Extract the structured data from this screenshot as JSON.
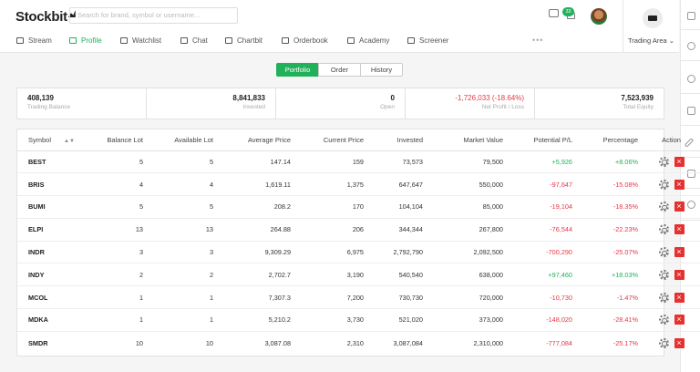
{
  "header": {
    "logo": "Stockbit",
    "search_placeholder": "Search for brand, symbol or username...",
    "notification_count": "33",
    "trading_area_label": "Trading Area",
    "nav": [
      {
        "label": "Stream",
        "icon": "home-icon"
      },
      {
        "label": "Profile",
        "icon": "user-icon",
        "active": true
      },
      {
        "label": "Watchlist",
        "icon": "star-icon"
      },
      {
        "label": "Chat",
        "icon": "chat-icon"
      },
      {
        "label": "Chartbit",
        "icon": "chart-icon"
      },
      {
        "label": "Orderbook",
        "icon": "book-icon"
      },
      {
        "label": "Academy",
        "icon": "academy-icon"
      },
      {
        "label": "Screener",
        "icon": "filter-icon"
      }
    ],
    "more": "•••"
  },
  "tabs": [
    {
      "label": "Portfolio",
      "active": true
    },
    {
      "label": "Order"
    },
    {
      "label": "History"
    }
  ],
  "summary": [
    {
      "value": "408,139",
      "label": "Trading Balance"
    },
    {
      "value": "8,841,833",
      "label": "Invested"
    },
    {
      "value": "0",
      "label": "Open"
    },
    {
      "value": "-1,726,033 (-18.64%)",
      "label": "Net Profit / Loss"
    },
    {
      "value": "7,523,939",
      "label": "Total Equity"
    }
  ],
  "table": {
    "headers": [
      "Symbol",
      "Balance Lot",
      "Available Lot",
      "Average Price",
      "Current Price",
      "Invested",
      "Market Value",
      "Potential P/L",
      "Percentage",
      "Action"
    ],
    "rows": [
      [
        "BEST",
        "5",
        "5",
        "147.14",
        "159",
        "73,573",
        "79,500",
        "+5,926",
        "+8.06%"
      ],
      [
        "BRIS",
        "4",
        "4",
        "1,619.11",
        "1,375",
        "647,647",
        "550,000",
        "-97,647",
        "-15.08%"
      ],
      [
        "BUMI",
        "5",
        "5",
        "208.2",
        "170",
        "104,104",
        "85,000",
        "-19,104",
        "-18.35%"
      ],
      [
        "ELPI",
        "13",
        "13",
        "264.88",
        "206",
        "344,344",
        "267,800",
        "-76,544",
        "-22.23%"
      ],
      [
        "INDR",
        "3",
        "3",
        "9,309.29",
        "6,975",
        "2,792,790",
        "2,092,500",
        "-700,290",
        "-25.07%"
      ],
      [
        "INDY",
        "2",
        "2",
        "2,702.7",
        "3,190",
        "540,540",
        "638,000",
        "+97,460",
        "+18.03%"
      ],
      [
        "MCOL",
        "1",
        "1",
        "7,307.3",
        "7,200",
        "730,730",
        "720,000",
        "-10,730",
        "-1.47%"
      ],
      [
        "MDKA",
        "1",
        "1",
        "5,210.2",
        "3,730",
        "521,020",
        "373,000",
        "-148,020",
        "-28.41%"
      ],
      [
        "SMDR",
        "10",
        "10",
        "3,087.08",
        "2,310",
        "3,087,084",
        "2,310,000",
        "-777,084",
        "-25.17%"
      ]
    ]
  },
  "colors": {
    "accent": "#21b15a",
    "negative": "#e4384a",
    "delete": "#e5312f"
  }
}
